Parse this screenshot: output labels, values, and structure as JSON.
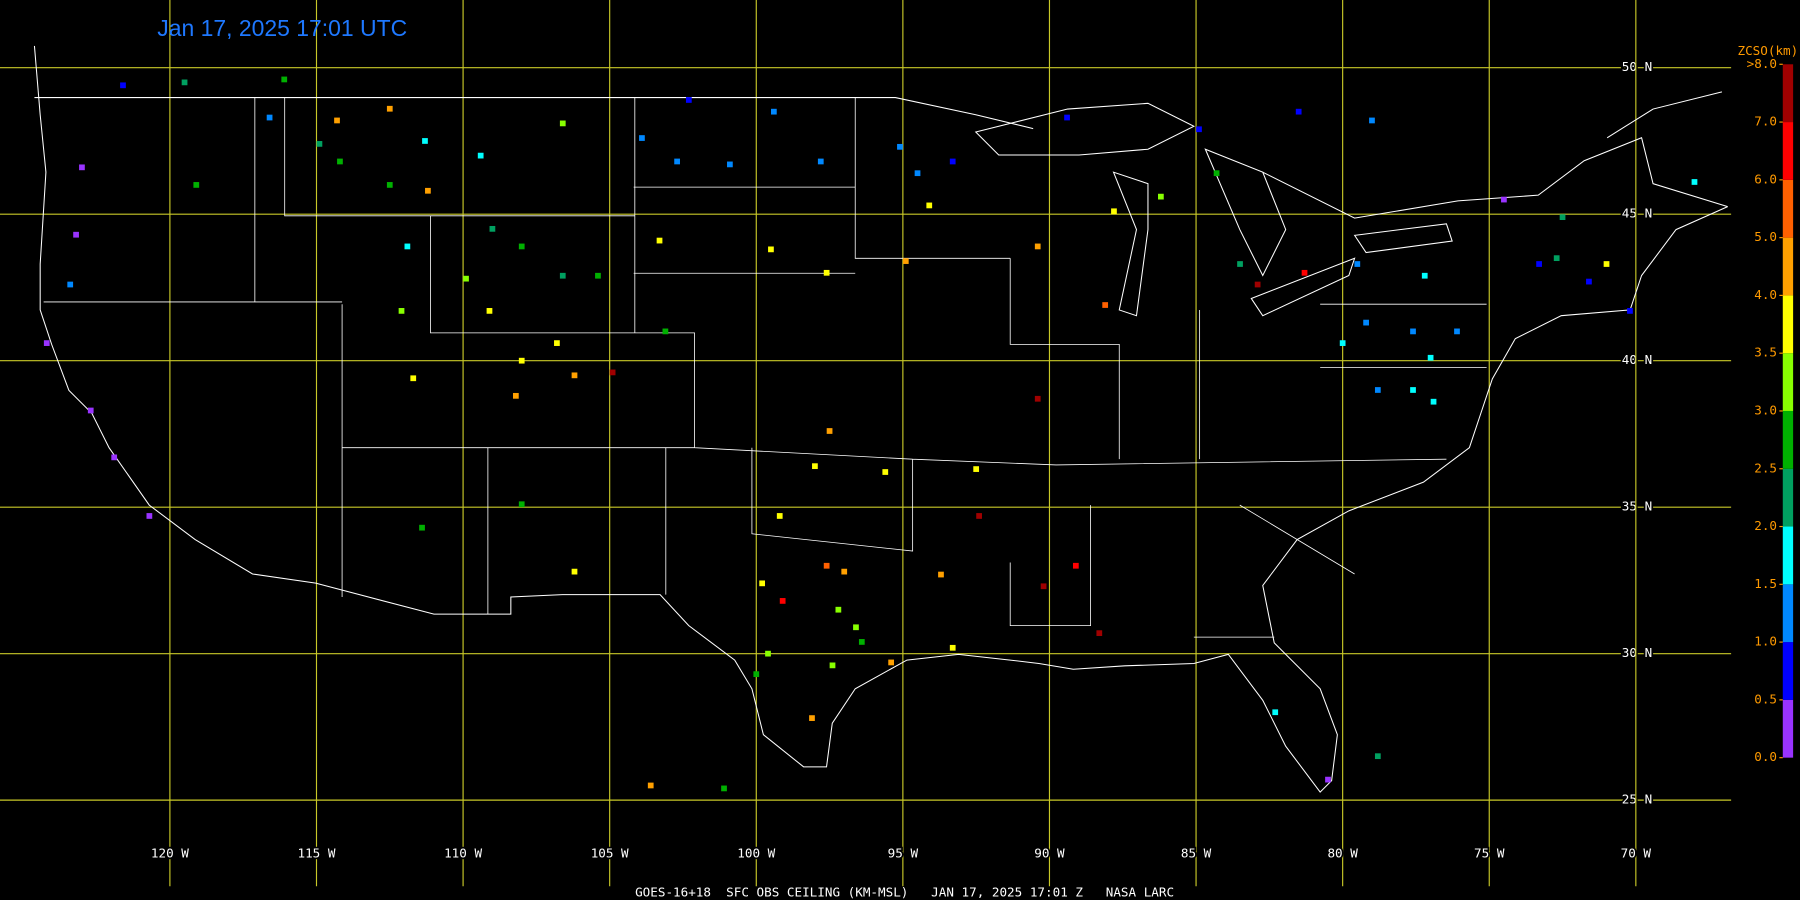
{
  "title": "Jan 17, 2025 17:01 UTC",
  "footer": "GOES-16+18  SFC OBS CEILING (KM-MSL)   JAN 17, 2025 17:01 Z   NASA LARC",
  "lat_ticks": [
    {
      "value": 50,
      "label": "50 N"
    },
    {
      "value": 45,
      "label": "45 N"
    },
    {
      "value": 40,
      "label": "40 N"
    },
    {
      "value": 35,
      "label": "35 N"
    },
    {
      "value": 30,
      "label": "30 N"
    },
    {
      "value": 25,
      "label": "25 N"
    }
  ],
  "lon_ticks": [
    {
      "value": -120,
      "label": "120 W"
    },
    {
      "value": -115,
      "label": "115 W"
    },
    {
      "value": -110,
      "label": "110 W"
    },
    {
      "value": -105,
      "label": "105 W"
    },
    {
      "value": -100,
      "label": "100 W"
    },
    {
      "value": -95,
      "label": "95 W"
    },
    {
      "value": -90,
      "label": "90 W"
    },
    {
      "value": -85,
      "label": "85 W"
    },
    {
      "value": -80,
      "label": "80 W"
    },
    {
      "value": -75,
      "label": "75 W"
    },
    {
      "value": -70,
      "label": "70 W"
    }
  ],
  "colorbar": {
    "title": "ZCSO(km)",
    "ticks": [
      {
        "value": 0,
        "label": "0.0"
      },
      {
        "value": 0.5,
        "label": "0.5"
      },
      {
        "value": 1,
        "label": "1.0"
      },
      {
        "value": 1.5,
        "label": "1.5"
      },
      {
        "value": 2,
        "label": "2.0"
      },
      {
        "value": 2.5,
        "label": "2.5"
      },
      {
        "value": 3,
        "label": "3.0"
      },
      {
        "value": 3.5,
        "label": "3.5"
      },
      {
        "value": 4,
        "label": "4.0"
      },
      {
        "value": 5,
        "label": "5.0"
      },
      {
        "value": 6,
        "label": "6.0"
      },
      {
        "value": 7,
        "label": "7.0"
      },
      {
        "value": 8,
        "label": ">8.0"
      }
    ],
    "colors": [
      "#9933ff",
      "#0000ff",
      "#0088ff",
      "#00ffff",
      "#00a060",
      "#00b000",
      "#88ff00",
      "#ffff00",
      "#ffa000",
      "#ff6000",
      "#ff0000",
      "#a00000"
    ]
  },
  "stations": {
    "lon": [
      -116.6,
      -99.4,
      -97.8,
      -95.1,
      -94.5,
      -102.7,
      -100.9,
      -103.9,
      -79.0,
      -79.5,
      -79.2,
      -77.6,
      -76.1,
      -78.8,
      -123.4,
      -111.3,
      -109.4,
      -111.9,
      -77.0,
      -77.6,
      -76.9,
      -80.0,
      -82.3,
      -68.0,
      -77.2,
      -123.0,
      -123.2,
      -124.2,
      -122.7,
      -121.9,
      -120.7,
      -80.5,
      -74.5,
      -121.6,
      -102.3,
      -93.3,
      -89.4,
      -84.9,
      -81.5,
      -73.3,
      -71.6,
      -70.2,
      -119.1,
      -116.1,
      -114.2,
      -112.5,
      -108.0,
      -105.4,
      -103.1,
      -108.0,
      -111.4,
      -101.1,
      -100.0,
      -96.4,
      -84.3,
      -119.5,
      -114.9,
      -109.0,
      -106.6,
      -83.5,
      -72.5,
      -72.7,
      -78.8,
      -112.1,
      -106.6,
      -109.9,
      -99.6,
      -97.2,
      -96.6,
      -97.4,
      -86.2,
      -111.7,
      -109.1,
      -108.0,
      -106.8,
      -103.3,
      -99.5,
      -97.6,
      -94.1,
      -106.2,
      -99.2,
      -98.0,
      -95.6,
      -92.5,
      -99.8,
      -87.8,
      -71.0,
      -93.3,
      -114.3,
      -112.5,
      -111.2,
      -108.2,
      -106.2,
      -97.5,
      -103.6,
      -98.1,
      -97.0,
      -95.4,
      -94.9,
      -90.4,
      -93.7,
      -88.1,
      -97.6,
      -99.1,
      -89.1,
      -81.3,
      -104.9,
      -92.4,
      -90.2,
      -88.3,
      -90.4,
      -82.9
    ],
    "lat": [
      48.3,
      48.5,
      46.8,
      47.3,
      46.4,
      46.8,
      46.7,
      47.6,
      48.2,
      43.3,
      41.3,
      41.0,
      41.0,
      39.0,
      42.6,
      47.5,
      47.0,
      43.9,
      40.1,
      39.0,
      38.6,
      40.6,
      28.0,
      46.1,
      42.9,
      46.6,
      44.3,
      40.6,
      38.3,
      36.7,
      34.7,
      25.7,
      45.5,
      49.4,
      48.9,
      46.8,
      48.3,
      47.9,
      48.5,
      43.3,
      42.7,
      41.7,
      46.0,
      49.6,
      46.8,
      46.0,
      43.9,
      42.9,
      41.0,
      35.1,
      34.3,
      25.4,
      29.3,
      30.4,
      46.4,
      49.5,
      47.4,
      44.5,
      42.9,
      43.3,
      44.9,
      43.5,
      26.5,
      41.7,
      48.1,
      42.8,
      30.0,
      31.5,
      30.9,
      29.6,
      45.6,
      39.4,
      41.7,
      40.0,
      40.6,
      44.1,
      43.8,
      43.0,
      45.3,
      32.8,
      34.7,
      36.4,
      36.2,
      36.3,
      32.4,
      45.1,
      43.3,
      30.2,
      48.2,
      48.6,
      45.8,
      38.8,
      39.5,
      37.6,
      25.5,
      27.8,
      32.8,
      29.7,
      43.4,
      43.9,
      32.7,
      41.9,
      33.0,
      31.8,
      33.0,
      43.0,
      39.6,
      34.7,
      32.3,
      30.7,
      38.7,
      42.6
    ],
    "ceiling_km": [
      1.2,
      1.2,
      1.2,
      1.2,
      1.2,
      1.2,
      1.2,
      1.2,
      1.2,
      1.2,
      1.2,
      1.2,
      1.2,
      1.2,
      1.2,
      1.8,
      1.8,
      1.8,
      1.8,
      1.8,
      1.8,
      1.8,
      1.8,
      1.8,
      1.8,
      0.3,
      0.3,
      0.3,
      0.3,
      0.3,
      0.3,
      0.3,
      0.3,
      0.8,
      0.8,
      0.8,
      0.8,
      0.8,
      0.8,
      0.8,
      0.8,
      0.8,
      2.8,
      2.8,
      2.8,
      2.8,
      2.8,
      2.8,
      2.8,
      2.8,
      2.8,
      2.8,
      2.8,
      2.8,
      2.8,
      2.3,
      2.3,
      2.3,
      2.3,
      2.3,
      2.3,
      2.3,
      2.3,
      3.2,
      3.2,
      3.2,
      3.2,
      3.2,
      3.2,
      3.2,
      3.2,
      3.7,
      3.7,
      3.7,
      3.7,
      3.7,
      3.7,
      3.7,
      3.7,
      3.7,
      3.7,
      3.7,
      3.7,
      3.7,
      3.7,
      3.7,
      3.7,
      3.7,
      4.5,
      4.5,
      4.5,
      4.5,
      4.5,
      4.5,
      4.5,
      4.5,
      4.5,
      4.5,
      4.5,
      4.5,
      4.5,
      5.5,
      5.5,
      6.5,
      6.5,
      6.5,
      7.5,
      7.5,
      7.5,
      7.5,
      7.5,
      7.5
    ]
  }
}
